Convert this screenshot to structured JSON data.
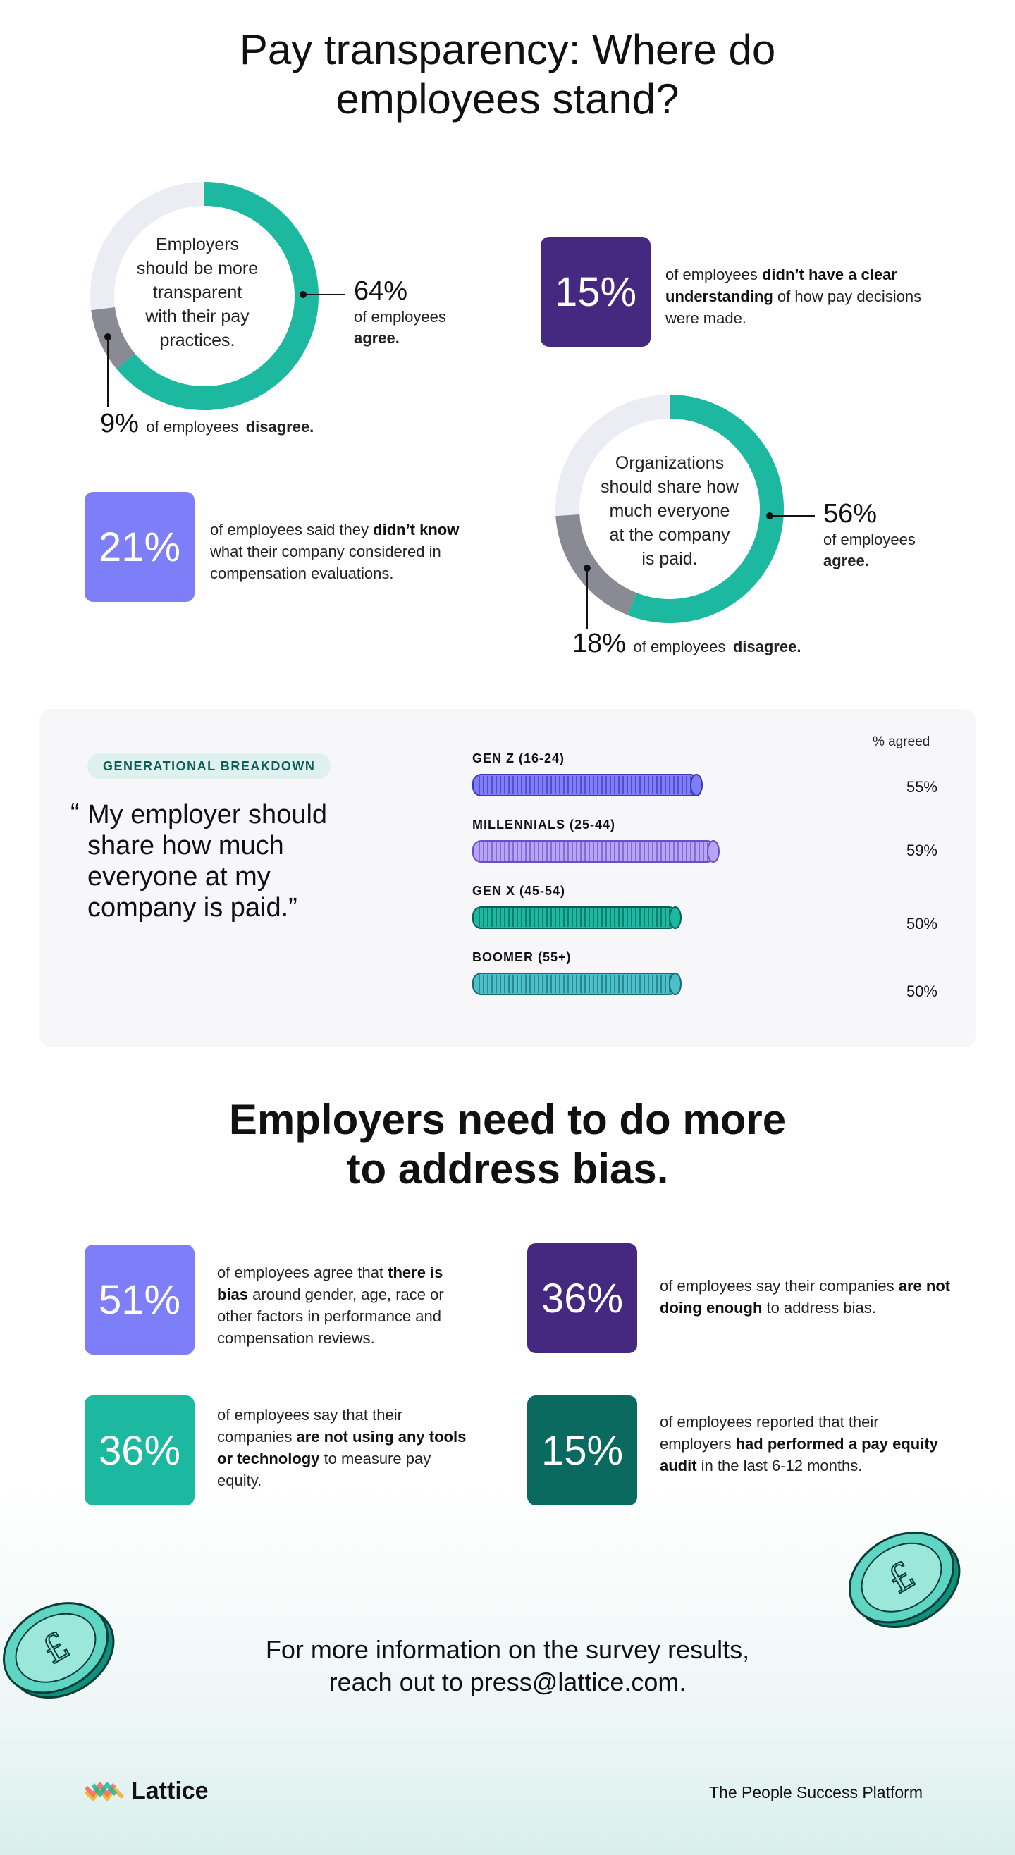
{
  "header": {
    "title_line1": "Pay transparency: Where do",
    "title_line2": "employees stand?"
  },
  "colors": {
    "teal": "#1cb89f",
    "grey": "#8a8a94",
    "track": "#ececf4",
    "purple_dark": "#45287f",
    "periwinkle": "#7e7ef8",
    "lavender": "#b8a3f5",
    "teal_dark": "#0a6a5f",
    "cyan": "#4cc0c8"
  },
  "donut1": {
    "center_text": [
      "Employers",
      "should be more",
      "transparent",
      "with their pay",
      "practices."
    ],
    "agree_pct": "64%",
    "agree_text": "of employees",
    "agree_bold": "agree.",
    "disagree_pct": "9%",
    "disagree_text": "of employees",
    "disagree_bold": "disagree."
  },
  "donut2": {
    "center_text": [
      "Organizations",
      "should share how",
      "much everyone",
      "at the company",
      "is paid."
    ],
    "agree_pct": "56%",
    "agree_text": "of employees",
    "agree_bold": "agree.",
    "disagree_pct": "18%",
    "disagree_text": "of employees",
    "disagree_bold": "disagree."
  },
  "stat_15a": {
    "value": "15%",
    "text_pre": "of employees ",
    "text_bold": "didn’t have a clear understanding",
    "text_post": " of how pay decisions were made."
  },
  "stat_21": {
    "value": "21%",
    "text_pre": "of employees said they ",
    "text_bold": "didn’t know",
    "text_post": " what their company considered in compensation evaluations."
  },
  "generational": {
    "pill": "GENERATIONAL BREAKDOWN",
    "quote_open": "“",
    "quote_lines": [
      "My employer should",
      "share how much",
      "everyone at my",
      "company is paid.”"
    ],
    "col_header": "% agreed",
    "rows": [
      {
        "label": "GEN Z (16-24)",
        "value": "55%"
      },
      {
        "label": "MILLENNIALS (25-44)",
        "value": "59%"
      },
      {
        "label": "GEN X (45-54)",
        "value": "50%"
      },
      {
        "label": "BOOMER (55+)",
        "value": "50%"
      }
    ]
  },
  "bias": {
    "title_line1": "Employers need to do more",
    "title_line2": "to address bias.",
    "stats": [
      {
        "value": "51%",
        "pre": "of employees agree that ",
        "bold": "there is bias",
        "post": " around gender, age, race or other factors in performance and compensation reviews."
      },
      {
        "value": "36%",
        "pre": "of employees say their companies ",
        "bold": "are not doing enough",
        "post": " to address bias."
      },
      {
        "value": "36%",
        "pre": "of employees say that their companies ",
        "bold": "are not using any tools or technology",
        "post": " to measure pay equity."
      },
      {
        "value": "15%",
        "pre": "of employees reported that their employers ",
        "bold": "had performed a pay equity audit",
        "post": " in the last 6-12 months."
      }
    ]
  },
  "footer": {
    "cta_line1": "For more information on the survey results,",
    "cta_line2": "reach out to press@lattice.com.",
    "logo": "Lattice",
    "tagline": "The People Success Platform"
  },
  "chart_data": [
    {
      "type": "pie",
      "categories": [
        "agree",
        "disagree"
      ],
      "values": [
        64,
        9
      ]
    },
    {
      "type": "pie",
      "categories": [
        "agree",
        "disagree"
      ],
      "values": [
        56,
        18
      ]
    },
    {
      "type": "bar",
      "categories": [
        "GEN Z (16-24)",
        "MILLENNIALS (25-44)",
        "GEN X (45-54)",
        "BOOMER (55+)"
      ],
      "values": [
        55,
        59,
        50,
        50
      ],
      "ylabel": "% agreed",
      "ylim": [
        0,
        100
      ]
    }
  ]
}
